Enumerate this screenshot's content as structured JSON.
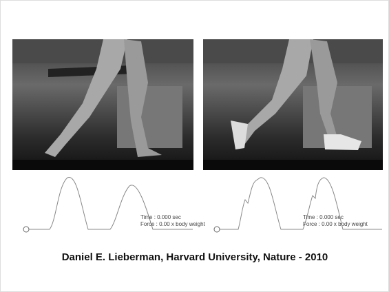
{
  "panels": [
    {
      "time_label": "Time : 0.000 sec",
      "force_label": "Force : 0.00 x body weight"
    },
    {
      "time_label": "Time : 0.000 sec",
      "force_label": "Force : 0.00 x body weight"
    }
  ],
  "caption": "Daniel E. Lieberman, Harvard University, Nature - 2010"
}
